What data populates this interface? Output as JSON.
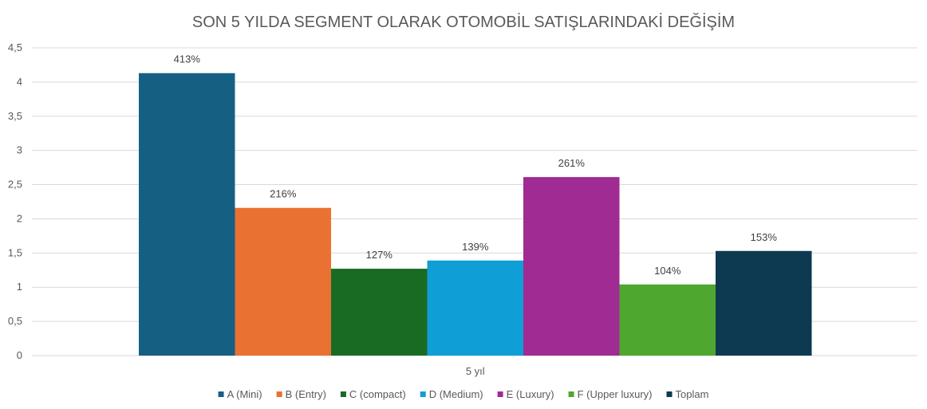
{
  "chart_data": {
    "type": "bar",
    "title": "SON 5 YILDA SEGMENT OLARAK OTOMOBİL SATIŞLARINDAKİ DEĞİŞİM",
    "categories": [
      "5 yıl"
    ],
    "series": [
      {
        "name": "A (Mini)",
        "values": [
          4.13
        ],
        "label": "413%",
        "color": "#156082"
      },
      {
        "name": "B (Entry)",
        "values": [
          2.16
        ],
        "label": "216%",
        "color": "#e97132"
      },
      {
        "name": "C (compact)",
        "values": [
          1.27
        ],
        "label": "127%",
        "color": "#196b24"
      },
      {
        "name": "D (Medium)",
        "values": [
          1.39
        ],
        "label": "139%",
        "color": "#0f9ed5"
      },
      {
        "name": "E (Luxury)",
        "values": [
          2.61
        ],
        "label": "261%",
        "color": "#a02b93"
      },
      {
        "name": "F (Upper luxury)",
        "values": [
          1.04
        ],
        "label": "104%",
        "color": "#4ea72e"
      },
      {
        "name": "Toplam",
        "values": [
          1.53
        ],
        "label": "153%",
        "color": "#0e3a51"
      }
    ],
    "yticks": [
      "0",
      "0,5",
      "1",
      "1,5",
      "2",
      "2,5",
      "3",
      "3,5",
      "4",
      "4,5"
    ],
    "ylim": [
      0,
      4.5
    ],
    "xlabel": "",
    "ylabel": "",
    "grid": true,
    "legend": "bottom"
  }
}
